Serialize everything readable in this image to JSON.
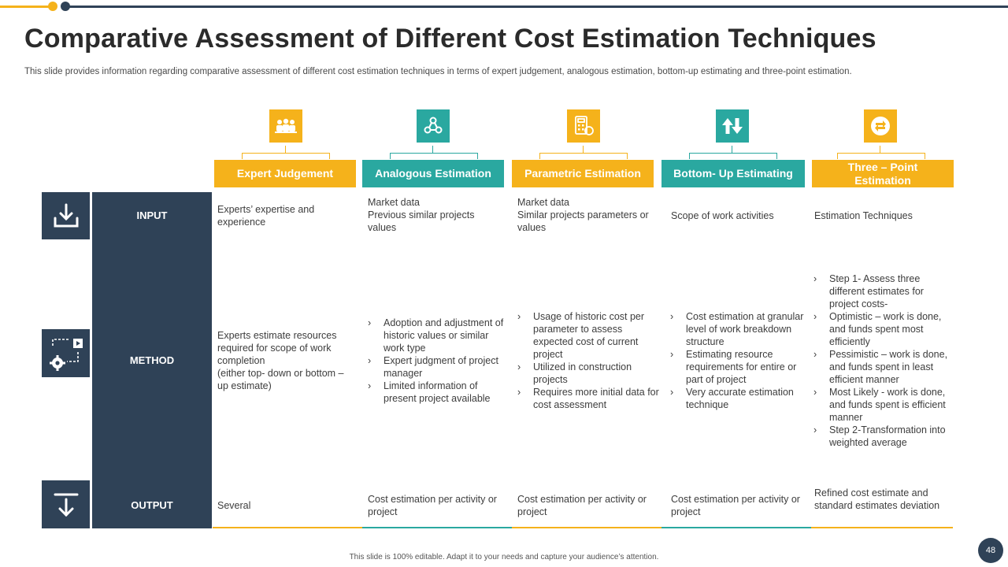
{
  "colors": {
    "yellow": "#f5b21b",
    "teal": "#2aa8a0",
    "navy": "#2f4257"
  },
  "slide": {
    "title": "Comparative Assessment of Different Cost Estimation Techniques",
    "subtitle": "This slide provides information regarding comparative assessment of different cost estimation techniques in terms of expert judgement, analogous estimation, bottom-up estimating and three-point estimation.",
    "footer": "This slide is 100% editable. Adapt it to your needs and capture your audience’s attention.",
    "page_number": "48"
  },
  "columns": [
    {
      "label": "Expert Judgement",
      "icon": "team-icon"
    },
    {
      "label": "Analogous Estimation",
      "icon": "network-icon"
    },
    {
      "label": "Parametric Estimation",
      "icon": "calculator-icon"
    },
    {
      "label": "Bottom- Up Estimating",
      "icon": "up-down-arrows-icon"
    },
    {
      "label": "Three – Point Estimation",
      "icon": "coin-exchange-icon"
    }
  ],
  "rows": {
    "input": {
      "label": "INPUT",
      "icon": "download-icon",
      "cells": [
        [
          "Experts’ expertise and experience"
        ],
        [
          "Market data",
          "Previous similar projects values"
        ],
        [
          "Market data",
          "Similar projects parameters or values"
        ],
        [
          "Scope of work activities"
        ],
        [
          "Estimation Techniques"
        ]
      ]
    },
    "method": {
      "label": "METHOD",
      "icon": "process-gear-icon",
      "expert": [
        "Experts estimate resources required for scope of work completion",
        "(either top- down or bottom – up estimate)"
      ],
      "analogous": [
        "Adoption and adjustment of historic values or similar work type",
        "Expert judgment of project manager",
        "Limited information  of present project available"
      ],
      "parametric": [
        "Usage of historic cost per parameter to assess expected cost of current project",
        "Utilized in construction projects",
        "Requires more initial data for cost assessment"
      ],
      "bottomup": [
        "Cost estimation at granular level of work breakdown structure",
        "Estimating resource requirements for entire or part of project",
        "Very accurate estimation technique"
      ],
      "threepoint": [
        "Step 1- Assess three different estimates for project costs-",
        "Optimistic – work is done, and funds spent most efficiently",
        "Pessimistic – work is done, and funds spent in least efficient manner",
        "Most Likely - work is done, and funds spent is efficient manner",
        "Step 2-Transformation into weighted average"
      ]
    },
    "output": {
      "label": "OUTPUT",
      "icon": "download-arrow-icon",
      "cells": [
        "Several",
        "Cost estimation per activity or project",
        "Cost estimation per activity or project",
        "Cost estimation per activity or project",
        "Refined cost estimate and standard estimates deviation"
      ]
    }
  }
}
